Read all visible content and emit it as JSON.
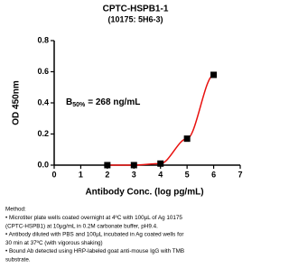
{
  "chart_data": {
    "type": "line",
    "title": "CPTC-HSPB1-1",
    "subtitle": "(10175: 5H6-3)",
    "x_label": "Antibody Conc. (log pg/mL)",
    "y_label": "OD 450nm",
    "annotation": {
      "base": "B",
      "sub": "50%",
      "text": "= 268 ng/mL"
    },
    "x": [
      2,
      3,
      4,
      5,
      6
    ],
    "series": [
      {
        "name": "CPTC-HSPB1-1",
        "color": "#e8100e",
        "marker_color": "#000000",
        "values": [
          0.0,
          0.0,
          0.01,
          0.17,
          0.58
        ]
      }
    ],
    "xlim": [
      0,
      7
    ],
    "xticks": [
      0,
      1,
      2,
      3,
      4,
      5,
      6,
      7
    ],
    "ylim": [
      0,
      0.8
    ],
    "yticks": [
      {
        "value": 0,
        "label": "0.0"
      },
      {
        "value": 0.2,
        "label": "0.2"
      },
      {
        "value": 0.4,
        "label": "0.4"
      },
      {
        "value": 0.6,
        "label": "0.6"
      },
      {
        "value": 0.8,
        "label": "0.8"
      }
    ],
    "grid": false,
    "method": [
      "Method:",
      "• Microtiter plate wells coated overnight at 4ºC  with 100µL of Ag 10175",
      "(CPTC-HSPB1) at 10µg/mL in 0.2M carbonate buffer, pH9.4.",
      "• Antibody diluted with PBS and 100µL incubated in Ag coated wells for",
      "30 min at 37ºC (with vigorous shaking)",
      "• Bound Ab detected using HRP-labeled goat anti-mouse IgG with TMB",
      "substrate."
    ]
  }
}
